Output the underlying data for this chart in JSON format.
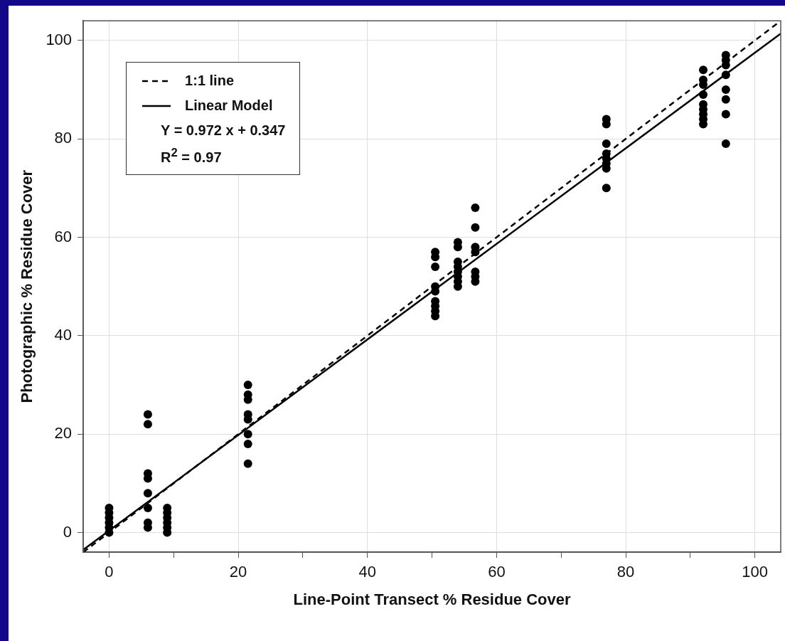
{
  "chart_data": {
    "type": "scatter",
    "xlabel": "Line-Point Transect % Residue Cover",
    "ylabel": "Photographic % Residue Cover",
    "xlim": [
      -4,
      104
    ],
    "ylim": [
      -4,
      104
    ],
    "xticks": [
      0,
      {
        "value": 10,
        "label": null
      },
      20,
      {
        "value": 30,
        "label": null
      },
      40,
      {
        "value": 50,
        "label": null
      },
      60,
      {
        "value": 70,
        "label": null
      },
      80,
      {
        "value": 90,
        "label": null
      },
      100
    ],
    "yticks": [
      0,
      20,
      40,
      60,
      80,
      100
    ],
    "grid": true,
    "legend": "top left",
    "marker": "circle",
    "annotations": [
      "Y = 0.972 x + 0.347",
      "R$^{2}$ = 0.97"
    ],
    "series": [
      {
        "type": "line",
        "name": "1:1 line",
        "color": "#000000",
        "line_style": "dashed",
        "marker": "none",
        "x": [
          -4,
          104
        ],
        "values": [
          -4,
          104
        ]
      },
      {
        "type": "line",
        "name": "Linear Model",
        "color": "#000000",
        "line_style": "solid",
        "marker": "none",
        "x": [
          -4,
          104
        ],
        "values": [
          -3.5,
          101.4
        ]
      },
      {
        "color": "#000000",
        "x": [
          0,
          0,
          0,
          0,
          0,
          0,
          6,
          6,
          6,
          6,
          6,
          6,
          6,
          6,
          9,
          9,
          9,
          9,
          9,
          9,
          21.5,
          21.5,
          21.5,
          21.5,
          21.5,
          21.5,
          21.5,
          21.5,
          50.5,
          50.5,
          50.5,
          50.5,
          50.5,
          50.5,
          50.5,
          50.5,
          50.5,
          54,
          54,
          54,
          54,
          54,
          54,
          54,
          54,
          56.7,
          56.7,
          56.7,
          56.7,
          56.7,
          56.7,
          56.7,
          77,
          77,
          77,
          77,
          77,
          77,
          77,
          77,
          92,
          92,
          92,
          92,
          92,
          92,
          92,
          92,
          92,
          95.5,
          95.5,
          95.5,
          95.5,
          95.5,
          95.5,
          95.5,
          95.5
        ],
        "values": [
          0,
          1,
          2,
          3,
          4,
          5,
          24,
          22,
          12,
          11,
          8,
          5,
          2,
          1,
          0,
          1,
          2,
          3,
          4,
          5,
          30,
          28,
          27,
          24,
          23,
          20,
          18,
          14,
          57,
          56,
          54,
          50,
          49,
          47,
          46,
          45,
          44,
          59,
          58,
          55,
          54,
          53,
          52,
          51,
          50,
          66,
          62,
          58,
          57,
          53,
          52,
          51,
          84,
          83,
          79,
          77,
          76,
          75,
          74,
          70,
          94,
          92,
          91,
          89,
          87,
          86,
          85,
          84,
          83,
          97,
          96,
          95,
          93,
          90,
          88,
          85,
          79
        ]
      }
    ]
  }
}
